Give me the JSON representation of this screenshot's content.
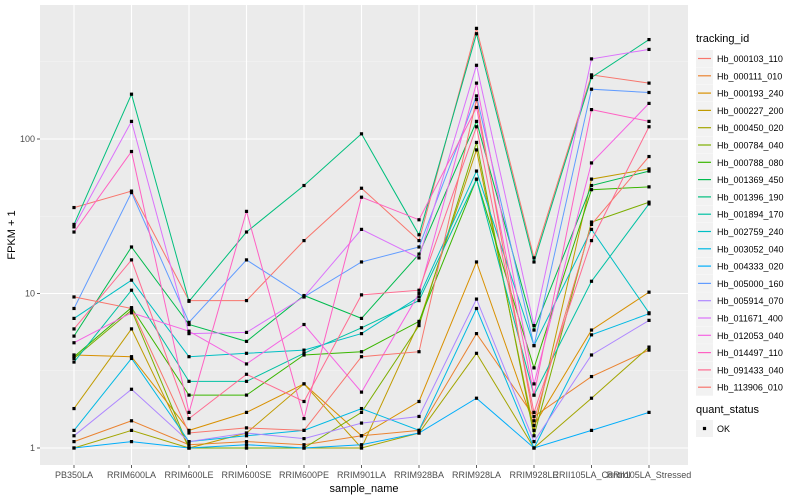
{
  "chart_data": {
    "type": "line",
    "title": "",
    "xlabel": "sample_name",
    "ylabel": "FPKM + 1",
    "yscale": "log10",
    "ylim": [
      0.8,
      650
    ],
    "yticks": [
      1,
      10,
      100
    ],
    "ytick_labels": [
      "1",
      "10",
      "100"
    ],
    "grid": true,
    "legend_position": "right",
    "categories": [
      "PB350LA",
      "RRIM600LA",
      "RRIM600LE",
      "RRIM600SE",
      "RRIM600PE",
      "RRIM901LA",
      "RRIM928BA",
      "RRIM928LA",
      "RRIM928LE",
      "RRII105LA_Control",
      "RRII105LA_Stressed"
    ],
    "legend_title": "tracking_id",
    "series": [
      {
        "name": "Hb_000103_110",
        "color": "#F8766D",
        "values": [
          36,
          46,
          9,
          9,
          22,
          48,
          22,
          520,
          17,
          260,
          230
        ]
      },
      {
        "name": "Hb_000111_010",
        "color": "#EA8331",
        "values": [
          1.1,
          1.5,
          1.05,
          1.1,
          1.05,
          1.2,
          1.3,
          5.5,
          1.6,
          2.9,
          4.3
        ]
      },
      {
        "name": "Hb_000193_240",
        "color": "#D89000",
        "values": [
          4.0,
          3.9,
          1.3,
          1.7,
          2.6,
          1.2,
          2.0,
          16,
          1.4,
          5.8,
          10.2
        ]
      },
      {
        "name": "Hb_000227_200",
        "color": "#C09B00",
        "values": [
          1.8,
          5.9,
          1.0,
          1.25,
          2.6,
          1.0,
          6.5,
          85,
          1.3,
          55,
          64
        ]
      },
      {
        "name": "Hb_000450_020",
        "color": "#A3A500",
        "values": [
          1.0,
          1.3,
          1.0,
          1.0,
          1.0,
          1.0,
          1.25,
          4.1,
          1.0,
          2.1,
          4.5
        ]
      },
      {
        "name": "Hb_000784_040",
        "color": "#7CAE00",
        "values": [
          3.8,
          7.8,
          1.0,
          1.0,
          1.0,
          1.7,
          6.2,
          95,
          1.2,
          29,
          39
        ]
      },
      {
        "name": "Hb_000788_080",
        "color": "#39B600",
        "values": [
          3.9,
          8.1,
          2.2,
          2.2,
          4.0,
          4.2,
          6.6,
          55,
          3.3,
          47,
          49
        ]
      },
      {
        "name": "Hb_001369_450",
        "color": "#00BB4E",
        "values": [
          5.3,
          20,
          6.3,
          4.9,
          9.7,
          6.9,
          18,
          130,
          5.8,
          50,
          62
        ]
      },
      {
        "name": "Hb_001396_190",
        "color": "#00BF7D",
        "values": [
          28,
          195,
          8.9,
          25,
          50,
          108,
          24,
          480,
          16,
          250,
          440
        ]
      },
      {
        "name": "Hb_001894_170",
        "color": "#00C1A3",
        "values": [
          3.6,
          10.5,
          2.7,
          2.7,
          4.1,
          6.0,
          9.0,
          55,
          2.2,
          12,
          38
        ]
      },
      {
        "name": "Hb_002759_240",
        "color": "#00BFC4",
        "values": [
          6.9,
          12.2,
          3.9,
          4.1,
          4.3,
          5.5,
          9.5,
          62,
          4.6,
          26,
          7.5
        ]
      },
      {
        "name": "Hb_003052_040",
        "color": "#00B9E3",
        "values": [
          1.3,
          3.8,
          1.1,
          1.2,
          1.3,
          1.8,
          1.3,
          8.0,
          1.0,
          5.4,
          7.4
        ]
      },
      {
        "name": "Hb_004333_020",
        "color": "#00ADFA",
        "values": [
          1.0,
          1.1,
          1.0,
          1.05,
          1.0,
          1.05,
          1.25,
          2.1,
          1.0,
          1.3,
          1.7
        ]
      },
      {
        "name": "Hb_005000_160",
        "color": "#619CFF",
        "values": [
          8.0,
          45,
          6.5,
          16.5,
          9.5,
          16,
          20,
          190,
          4.6,
          210,
          200
        ]
      },
      {
        "name": "Hb_005914_070",
        "color": "#AE87FF",
        "values": [
          1.2,
          2.4,
          1.1,
          1.25,
          1.15,
          1.45,
          1.6,
          9.2,
          1.1,
          4.0,
          6.7
        ]
      },
      {
        "name": "Hb_011671_400",
        "color": "#DB72FB",
        "values": [
          27,
          130,
          5.5,
          5.6,
          9.5,
          26,
          17,
          300,
          6.2,
          330,
          380
        ]
      },
      {
        "name": "Hb_012053_040",
        "color": "#F564E3",
        "values": [
          4.8,
          7.5,
          5.7,
          3.5,
          6.3,
          2.3,
          10,
          230,
          2.6,
          70,
          170
        ]
      },
      {
        "name": "Hb_014497_110",
        "color": "#FF61C3",
        "values": [
          25,
          83,
          1.7,
          34,
          1.55,
          42,
          30,
          160,
          2.2,
          155,
          130
        ]
      },
      {
        "name": "Hb_091433_040",
        "color": "#FF6C91",
        "values": [
          5.9,
          16.5,
          1.55,
          3.0,
          2.0,
          9.8,
          10.5,
          120,
          1.7,
          22,
          120
        ]
      },
      {
        "name": "Hb_113906_010",
        "color": "#F8766D",
        "values": [
          9.5,
          8.0,
          1.25,
          1.35,
          1.3,
          3.9,
          4.2,
          180,
          1.5,
          28,
          77
        ]
      }
    ],
    "shape_legend_title": "quant_status",
    "shape_legend_items": [
      "OK"
    ]
  }
}
